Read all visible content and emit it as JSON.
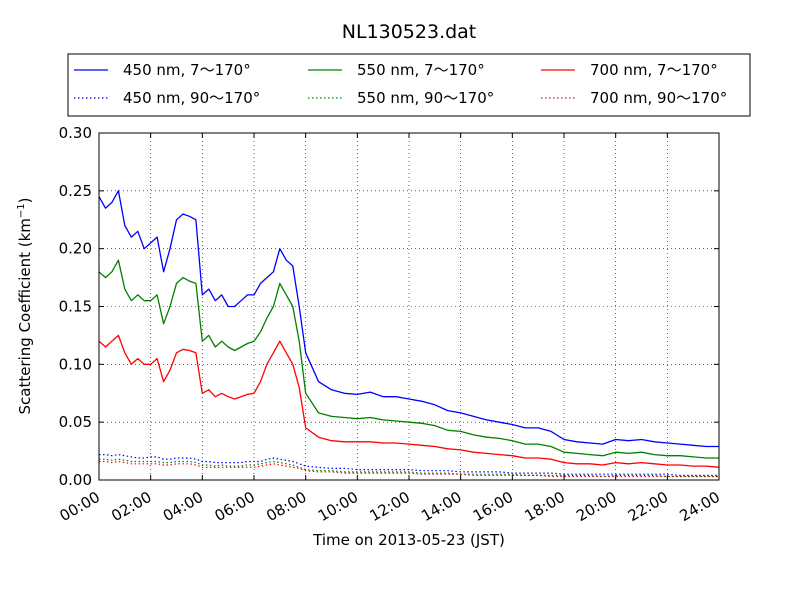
{
  "chart_data": {
    "type": "line",
    "title": "NL130523.dat",
    "xlabel": "Time on 2013-05-23 (JST)",
    "ylabel_main": "Scattering Coefficient (km",
    "ylabel_sup": "−1",
    "ylabel_end": ")",
    "xlim": [
      "00:00",
      "24:00"
    ],
    "ylim": [
      0.0,
      0.3
    ],
    "xticks": [
      "00:00",
      "02:00",
      "04:00",
      "06:00",
      "08:00",
      "10:00",
      "12:00",
      "14:00",
      "16:00",
      "18:00",
      "20:00",
      "22:00",
      "24:00"
    ],
    "yticks": [
      "0.00",
      "0.05",
      "0.10",
      "0.15",
      "0.20",
      "0.25",
      "0.30"
    ],
    "grid": true,
    "legend_position": "top",
    "x_hours": [
      0,
      0.25,
      0.5,
      0.75,
      1,
      1.25,
      1.5,
      1.75,
      2,
      2.25,
      2.5,
      2.75,
      3,
      3.25,
      3.5,
      3.75,
      4,
      4.25,
      4.5,
      4.75,
      5,
      5.25,
      5.5,
      5.75,
      6,
      6.25,
      6.5,
      6.75,
      7,
      7.25,
      7.5,
      7.75,
      8,
      8.5,
      9,
      9.5,
      10,
      10.5,
      11,
      11.5,
      12,
      12.5,
      13,
      13.5,
      14,
      14.5,
      15,
      15.5,
      16,
      16.5,
      17,
      17.5,
      18,
      18.5,
      19,
      19.5,
      20,
      20.5,
      21,
      21.5,
      22,
      22.5,
      23,
      23.5,
      24
    ],
    "series": [
      {
        "name": "450 nm, 7～170°",
        "color": "#0000ff",
        "style": "solid",
        "values": [
          0.245,
          0.235,
          0.24,
          0.25,
          0.22,
          0.21,
          0.215,
          0.2,
          0.205,
          0.21,
          0.18,
          0.2,
          0.225,
          0.23,
          0.228,
          0.225,
          0.16,
          0.165,
          0.155,
          0.16,
          0.15,
          0.15,
          0.155,
          0.16,
          0.16,
          0.17,
          0.175,
          0.18,
          0.2,
          0.19,
          0.185,
          0.15,
          0.11,
          0.085,
          0.078,
          0.075,
          0.074,
          0.076,
          0.072,
          0.072,
          0.07,
          0.068,
          0.065,
          0.06,
          0.058,
          0.055,
          0.052,
          0.05,
          0.048,
          0.045,
          0.045,
          0.042,
          0.035,
          0.033,
          0.032,
          0.031,
          0.035,
          0.034,
          0.035,
          0.033,
          0.032,
          0.031,
          0.03,
          0.029,
          0.029
        ]
      },
      {
        "name": "450 nm, 90～170°",
        "color": "#0000ff",
        "style": "dotted",
        "values": [
          0.022,
          0.022,
          0.021,
          0.022,
          0.021,
          0.02,
          0.019,
          0.019,
          0.02,
          0.02,
          0.018,
          0.018,
          0.019,
          0.019,
          0.019,
          0.018,
          0.016,
          0.016,
          0.015,
          0.015,
          0.015,
          0.015,
          0.015,
          0.016,
          0.016,
          0.016,
          0.018,
          0.019,
          0.018,
          0.017,
          0.016,
          0.014,
          0.012,
          0.011,
          0.01,
          0.01,
          0.009,
          0.009,
          0.009,
          0.009,
          0.009,
          0.008,
          0.008,
          0.008,
          0.007,
          0.007,
          0.007,
          0.007,
          0.006,
          0.006,
          0.006,
          0.006,
          0.005,
          0.005,
          0.005,
          0.005,
          0.005,
          0.005,
          0.005,
          0.005,
          0.005,
          0.004,
          0.004,
          0.004,
          0.004
        ]
      },
      {
        "name": "550 nm, 7～170°",
        "color": "#008000",
        "style": "solid",
        "values": [
          0.18,
          0.175,
          0.18,
          0.19,
          0.165,
          0.155,
          0.16,
          0.155,
          0.155,
          0.16,
          0.135,
          0.15,
          0.17,
          0.175,
          0.172,
          0.17,
          0.12,
          0.125,
          0.115,
          0.12,
          0.115,
          0.112,
          0.115,
          0.118,
          0.12,
          0.128,
          0.14,
          0.15,
          0.17,
          0.16,
          0.15,
          0.12,
          0.075,
          0.058,
          0.055,
          0.054,
          0.053,
          0.054,
          0.052,
          0.051,
          0.05,
          0.049,
          0.047,
          0.043,
          0.042,
          0.039,
          0.037,
          0.036,
          0.034,
          0.031,
          0.031,
          0.029,
          0.024,
          0.023,
          0.022,
          0.021,
          0.024,
          0.023,
          0.024,
          0.022,
          0.021,
          0.021,
          0.02,
          0.019,
          0.019
        ]
      },
      {
        "name": "550 nm, 90～170°",
        "color": "#008000",
        "style": "dotted",
        "values": [
          0.018,
          0.018,
          0.017,
          0.018,
          0.017,
          0.016,
          0.016,
          0.016,
          0.016,
          0.016,
          0.015,
          0.015,
          0.016,
          0.016,
          0.016,
          0.015,
          0.013,
          0.013,
          0.012,
          0.013,
          0.012,
          0.012,
          0.012,
          0.013,
          0.013,
          0.014,
          0.015,
          0.016,
          0.015,
          0.014,
          0.013,
          0.011,
          0.009,
          0.008,
          0.008,
          0.007,
          0.007,
          0.007,
          0.007,
          0.007,
          0.007,
          0.006,
          0.006,
          0.006,
          0.005,
          0.005,
          0.005,
          0.005,
          0.005,
          0.004,
          0.004,
          0.004,
          0.004,
          0.004,
          0.004,
          0.003,
          0.004,
          0.004,
          0.004,
          0.004,
          0.003,
          0.003,
          0.003,
          0.003,
          0.003
        ]
      },
      {
        "name": "700 nm, 7～170°",
        "color": "#ff0000",
        "style": "solid",
        "values": [
          0.12,
          0.115,
          0.12,
          0.125,
          0.11,
          0.1,
          0.105,
          0.1,
          0.1,
          0.105,
          0.085,
          0.095,
          0.11,
          0.113,
          0.112,
          0.11,
          0.075,
          0.078,
          0.072,
          0.075,
          0.072,
          0.07,
          0.072,
          0.074,
          0.075,
          0.085,
          0.1,
          0.11,
          0.12,
          0.11,
          0.1,
          0.08,
          0.045,
          0.037,
          0.034,
          0.033,
          0.033,
          0.033,
          0.032,
          0.032,
          0.031,
          0.03,
          0.029,
          0.027,
          0.026,
          0.024,
          0.023,
          0.022,
          0.021,
          0.019,
          0.019,
          0.018,
          0.015,
          0.014,
          0.014,
          0.013,
          0.015,
          0.014,
          0.015,
          0.014,
          0.013,
          0.013,
          0.012,
          0.012,
          0.011
        ]
      },
      {
        "name": "700 nm, 90～170°",
        "color": "#ff0000",
        "style": "dotted",
        "values": [
          0.016,
          0.016,
          0.015,
          0.016,
          0.015,
          0.014,
          0.014,
          0.014,
          0.014,
          0.014,
          0.013,
          0.013,
          0.014,
          0.014,
          0.014,
          0.013,
          0.011,
          0.011,
          0.011,
          0.011,
          0.011,
          0.011,
          0.011,
          0.011,
          0.011,
          0.012,
          0.013,
          0.014,
          0.013,
          0.012,
          0.011,
          0.01,
          0.008,
          0.007,
          0.007,
          0.006,
          0.006,
          0.006,
          0.006,
          0.006,
          0.006,
          0.005,
          0.005,
          0.005,
          0.005,
          0.004,
          0.004,
          0.004,
          0.004,
          0.004,
          0.004,
          0.003,
          0.003,
          0.003,
          0.003,
          0.003,
          0.003,
          0.003,
          0.003,
          0.003,
          0.003,
          0.003,
          0.003,
          0.003,
          0.003
        ]
      }
    ]
  }
}
